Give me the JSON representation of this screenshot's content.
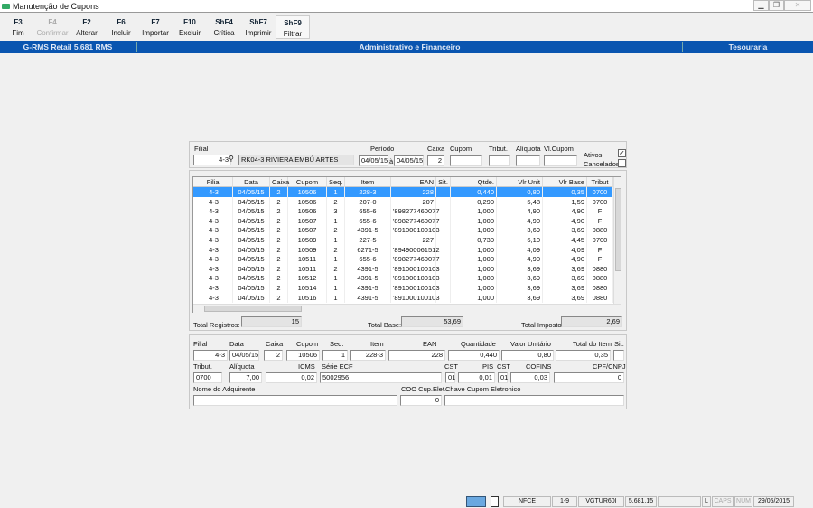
{
  "window": {
    "title": "Manutenção de Cupons",
    "minimize": "▁",
    "restore": "❐",
    "close": "✕"
  },
  "toolbar": [
    {
      "key": "F3",
      "label": "Fim",
      "enabled": true
    },
    {
      "key": "F4",
      "label": "Confirmar",
      "enabled": false
    },
    {
      "key": "F2",
      "label": "Alterar",
      "enabled": true
    },
    {
      "key": "F6",
      "label": "Incluir",
      "enabled": true
    },
    {
      "key": "F7",
      "label": "Importar",
      "enabled": true
    },
    {
      "key": "F10",
      "label": "Excluir",
      "enabled": true
    },
    {
      "key": "ShF4",
      "label": "Crítica",
      "enabled": true
    },
    {
      "key": "ShF7",
      "label": "Imprimir",
      "enabled": true
    },
    {
      "key": "ShF9",
      "label": "Filtrar",
      "enabled": true
    }
  ],
  "header": {
    "app": "G-RMS Retail 5.681 RMS",
    "module": "Administrativo e Financeiro",
    "section": "Tesouraria",
    "color": "#0a55b0"
  },
  "filter": {
    "filial_label": "Filial",
    "filial": "4-3",
    "loja": "RK04-3 RIVIERA EMBÚ ARTES",
    "periodo_label": "Período",
    "periodo_de": "04/05/15",
    "periodo_sep": "à",
    "periodo_ate": "04/05/15",
    "caixa_label": "Caixa",
    "caixa": "2",
    "cupom_label": "Cupom",
    "cupom": "",
    "tribut_label": "Tribut.",
    "tribut": "",
    "aliquota_label": "Alíquota",
    "aliquota": "",
    "vlcupom_label": "Vl.Cupom",
    "vlcupom": "",
    "ativos_label": "Ativos",
    "ativos_checked": true,
    "cancelados_label": "Cancelados",
    "cancelados_checked": false
  },
  "grid": {
    "columns": [
      "Filial",
      "Data",
      "Caixa",
      "Cupom",
      "Seq.",
      "Item",
      "EAN",
      "Sit.",
      "Qtde.",
      "Vlr Unit",
      "Vlr Base",
      "Tribut"
    ],
    "rows": [
      [
        "4-3",
        "04/05/15",
        "2",
        "10506",
        "1",
        "228-3",
        "228",
        "",
        "0,440",
        "0,80",
        "0,35",
        "0700"
      ],
      [
        "4-3",
        "04/05/15",
        "2",
        "10506",
        "2",
        "207-0",
        "207",
        "",
        "0,290",
        "5,48",
        "1,59",
        "0700"
      ],
      [
        "4-3",
        "04/05/15",
        "2",
        "10506",
        "3",
        "655-6",
        "'898277460077",
        "",
        "1,000",
        "4,90",
        "4,90",
        "F"
      ],
      [
        "4-3",
        "04/05/15",
        "2",
        "10507",
        "1",
        "655-6",
        "'898277460077",
        "",
        "1,000",
        "4,90",
        "4,90",
        "F"
      ],
      [
        "4-3",
        "04/05/15",
        "2",
        "10507",
        "2",
        "4391-5",
        "'891000100103",
        "",
        "1,000",
        "3,69",
        "3,69",
        "0880"
      ],
      [
        "4-3",
        "04/05/15",
        "2",
        "10509",
        "1",
        "227-5",
        "227",
        "",
        "0,730",
        "6,10",
        "4,45",
        "0700"
      ],
      [
        "4-3",
        "04/05/15",
        "2",
        "10509",
        "2",
        "6271-5",
        "'894900061512",
        "",
        "1,000",
        "4,09",
        "4,09",
        "F"
      ],
      [
        "4-3",
        "04/05/15",
        "2",
        "10511",
        "1",
        "655-6",
        "'898277460077",
        "",
        "1,000",
        "4,90",
        "4,90",
        "F"
      ],
      [
        "4-3",
        "04/05/15",
        "2",
        "10511",
        "2",
        "4391-5",
        "'891000100103",
        "",
        "1,000",
        "3,69",
        "3,69",
        "0880"
      ],
      [
        "4-3",
        "04/05/15",
        "2",
        "10512",
        "1",
        "4391-5",
        "'891000100103",
        "",
        "1,000",
        "3,69",
        "3,69",
        "0880"
      ],
      [
        "4-3",
        "04/05/15",
        "2",
        "10514",
        "1",
        "4391-5",
        "'891000100103",
        "",
        "1,000",
        "3,69",
        "3,69",
        "0880"
      ],
      [
        "4-3",
        "04/05/15",
        "2",
        "10516",
        "1",
        "4391-5",
        "'891000100103",
        "",
        "1,000",
        "3,69",
        "3,69",
        "0880"
      ]
    ],
    "selected_row": 0
  },
  "totals": {
    "registros_label": "Total  Registros:",
    "registros": "15",
    "base_label": "Total Base:",
    "base": "53,69",
    "imposto_label": "Total Imposto:",
    "imposto": "2,69"
  },
  "detail": {
    "filial_label": "Filial",
    "filial": "4-3",
    "data_label": "Data",
    "data": "04/05/15",
    "caixa_label": "Caixa",
    "caixa": "2",
    "cupom_label": "Cupom",
    "cupom": "10506",
    "seq_label": "Seq.",
    "seq": "1",
    "item_label": "Item",
    "item": "228-3",
    "ean_label": "EAN",
    "ean": "228",
    "qtd_label": "Quantidade",
    "qtd": "0,440",
    "vunit_label": "Valor Unitário",
    "vunit": "0,80",
    "total_label": "Total do Item",
    "total": "0,35",
    "sit_label": "Sit.",
    "sit": "",
    "tribut_label": "Tribut.",
    "tribut": "0700",
    "aliq_label": "Alíquota",
    "aliq": "7,00",
    "icms_label": "ICMS",
    "icms": "0,02",
    "serie_label": "Série ECF",
    "serie": "5002956",
    "cst1_label": "CST",
    "cst1": "01",
    "pis_label": "PIS",
    "pis": "0,01",
    "cst2_label": "CST",
    "cst2": "01",
    "cofins_label": "COFINS",
    "cofins": "0,03",
    "cpf_label": "CPF/CNPJ",
    "cpf": "0",
    "nome_label": "Nome do Adquirente",
    "nome": "",
    "coo_label": "COO Cup.Elet.",
    "coo": "0",
    "chave_label": "Chave Cupom Eletronico",
    "chave": ""
  },
  "statusbar": {
    "doc": "NFCE",
    "page": "1-9",
    "user": "VGTUR60I",
    "version": "5.681.15",
    "blank": "",
    "l": "L",
    "caps": "CAPS",
    "num": "NUM",
    "date": "29/05/2015"
  }
}
